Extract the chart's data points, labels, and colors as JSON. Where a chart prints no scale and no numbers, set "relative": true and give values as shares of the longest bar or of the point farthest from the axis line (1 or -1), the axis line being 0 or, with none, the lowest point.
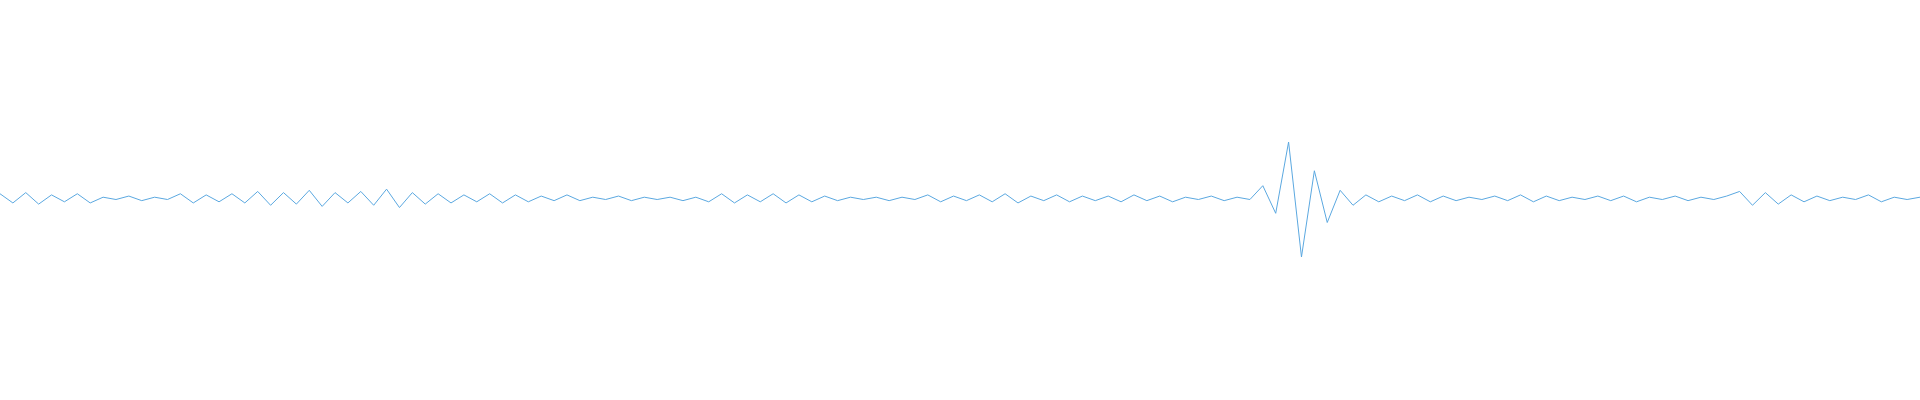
{
  "chart_data": {
    "type": "line",
    "relative": true,
    "color": "#5ba8e0",
    "grid": false,
    "marker": "none",
    "line_style": "solid",
    "categories": [
      null,
      null,
      null,
      null,
      null,
      null,
      null,
      null,
      null,
      null,
      null,
      null,
      null,
      null,
      null,
      null,
      null,
      null,
      null,
      null,
      null,
      null,
      null,
      null,
      null,
      null,
      null,
      null,
      null,
      null,
      null,
      null,
      null,
      null,
      null,
      null,
      null,
      null,
      null,
      null,
      null,
      null,
      null,
      null,
      null,
      null,
      null,
      null,
      null,
      null,
      null,
      null,
      null,
      null,
      null,
      null,
      null,
      null,
      null,
      null,
      null,
      null,
      null,
      null,
      null,
      null,
      null,
      null,
      null,
      null,
      null,
      null,
      null,
      null,
      null,
      null,
      null,
      null,
      null,
      null,
      null,
      null,
      null,
      null,
      null,
      null,
      null,
      null,
      null,
      null,
      null,
      null,
      null,
      null,
      null,
      null,
      null,
      null,
      null,
      null,
      null,
      null,
      null,
      null,
      null,
      null,
      null,
      null,
      null,
      null,
      null,
      null,
      null,
      null,
      null,
      null,
      null,
      null,
      null,
      null,
      null,
      null,
      null,
      null,
      null,
      null,
      null,
      null,
      null,
      null,
      null,
      null,
      null,
      null,
      null,
      null,
      null,
      null,
      null,
      null,
      null,
      null,
      null,
      null,
      null,
      null,
      null,
      null,
      null,
      null
    ],
    "values": [
      0.55,
      0.47,
      0.56,
      0.46,
      0.54,
      0.48,
      0.55,
      0.47,
      0.52,
      0.5,
      0.53,
      0.49,
      0.52,
      0.5,
      0.55,
      0.47,
      0.54,
      0.48,
      0.55,
      0.47,
      0.57,
      0.45,
      0.56,
      0.46,
      0.58,
      0.44,
      0.56,
      0.47,
      0.57,
      0.45,
      0.59,
      0.43,
      0.56,
      0.46,
      0.55,
      0.47,
      0.54,
      0.48,
      0.55,
      0.47,
      0.54,
      0.48,
      0.53,
      0.49,
      0.54,
      0.49,
      0.52,
      0.5,
      0.53,
      0.49,
      0.52,
      0.5,
      0.52,
      0.49,
      0.52,
      0.48,
      0.55,
      0.47,
      0.54,
      0.48,
      0.55,
      0.47,
      0.54,
      0.48,
      0.53,
      0.49,
      0.52,
      0.5,
      0.52,
      0.49,
      0.52,
      0.5,
      0.54,
      0.48,
      0.53,
      0.49,
      0.54,
      0.48,
      0.55,
      0.47,
      0.53,
      0.49,
      0.54,
      0.48,
      0.53,
      0.49,
      0.53,
      0.48,
      0.54,
      0.49,
      0.53,
      0.48,
      0.52,
      0.5,
      0.53,
      0.49,
      0.52,
      0.5,
      0.62,
      0.38,
      1,
      0,
      0.75,
      0.3,
      0.58,
      0.45,
      0.54,
      0.48,
      0.53,
      0.49,
      0.54,
      0.48,
      0.53,
      0.49,
      0.52,
      0.5,
      0.53,
      0.49,
      0.54,
      0.48,
      0.53,
      0.49,
      0.52,
      0.5,
      0.53,
      0.49,
      0.53,
      0.48,
      0.52,
      0.5,
      0.53,
      0.49,
      0.52,
      0.5,
      0.53,
      0.57,
      0.45,
      0.56,
      0.46,
      0.54,
      0.48,
      0.53,
      0.49,
      0.52,
      0.5,
      0.54,
      0.48,
      0.52,
      0.5,
      0.52
    ]
  }
}
